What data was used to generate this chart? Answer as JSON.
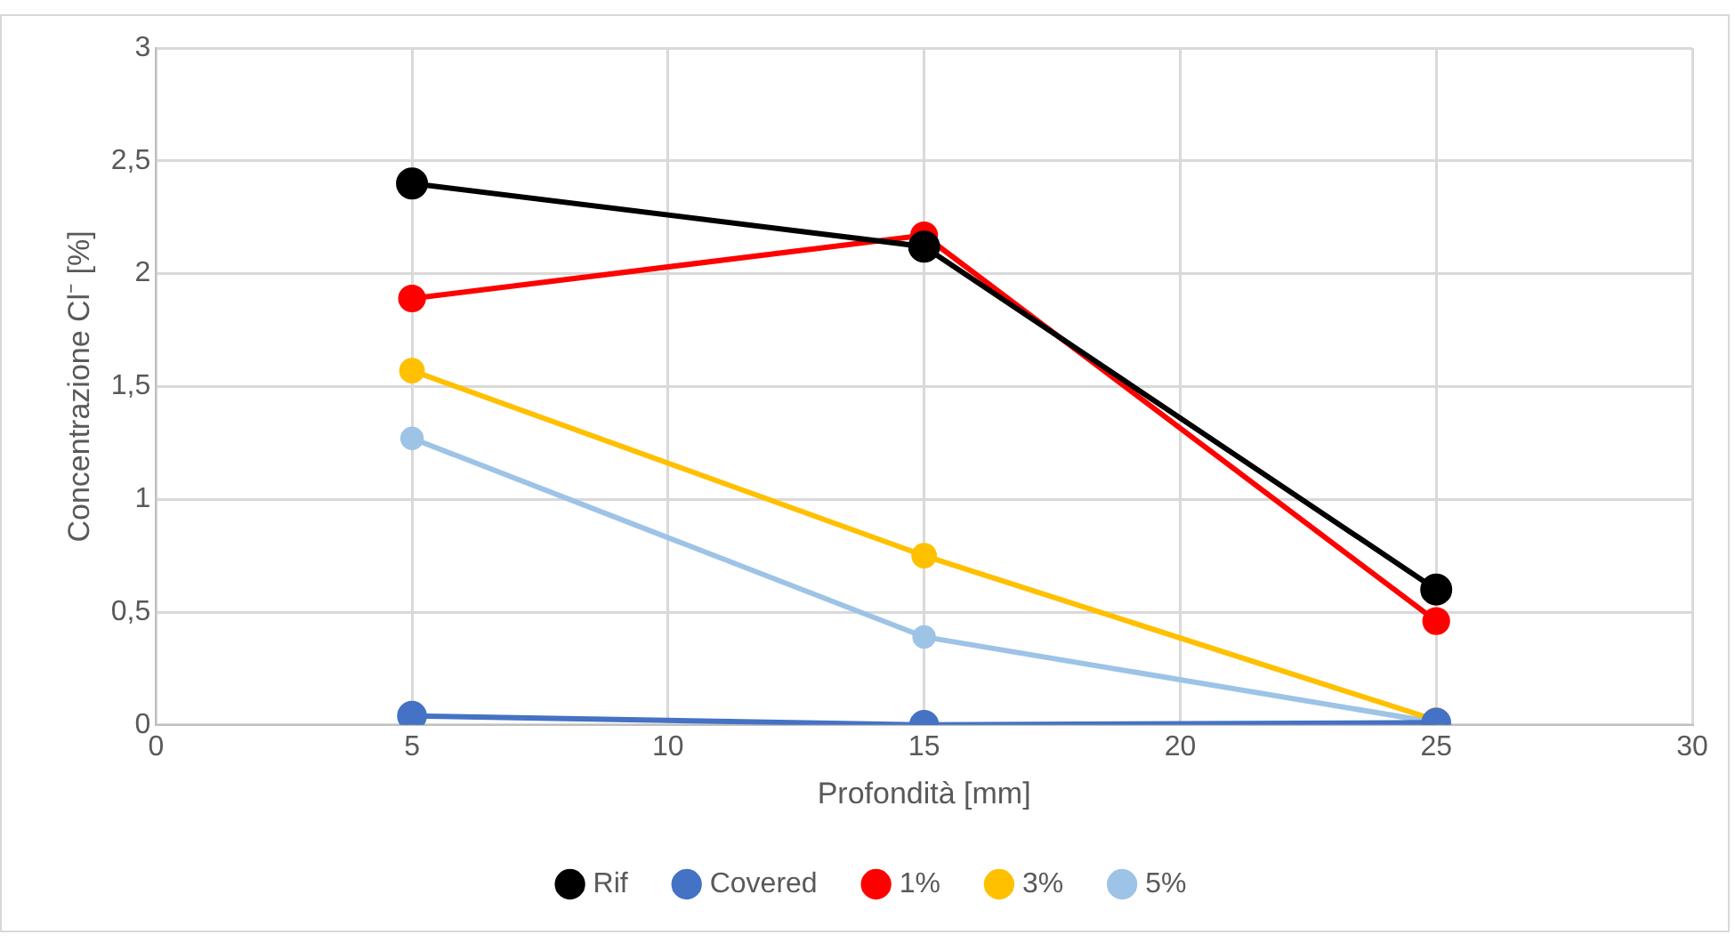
{
  "chart_data": {
    "type": "line",
    "xlabel": "Profondità [mm]",
    "ylabel": "Concentrazione Cl⁻ [%]",
    "x": [
      5,
      15,
      25
    ],
    "series": [
      {
        "name": "Rif",
        "color": "#000000",
        "values": [
          2.4,
          2.12,
          0.6
        ]
      },
      {
        "name": "Covered",
        "color": "#4472c4",
        "values": [
          0.04,
          0,
          0.01
        ]
      },
      {
        "name": "1%",
        "color": "#ff0000",
        "values": [
          1.89,
          2.17,
          0.46
        ]
      },
      {
        "name": "3%",
        "color": "#ffc000",
        "values": [
          1.57,
          0.75,
          0.02
        ]
      },
      {
        "name": "5%",
        "color": "#9dc3e6",
        "values": [
          1.27,
          0.39,
          0.01
        ]
      }
    ],
    "xlim": [
      0,
      30
    ],
    "xticks": [
      0,
      5,
      10,
      15,
      20,
      25,
      30
    ],
    "ylim": [
      0,
      3
    ],
    "yticks": [
      0,
      {
        "value": 0.5,
        "label": "0,5"
      },
      1,
      {
        "value": 1.5,
        "label": "1,5"
      },
      2,
      {
        "value": 2.5,
        "label": "2,5"
      },
      3
    ],
    "grid": true,
    "legend": "bottom",
    "marker": "circle",
    "line_style": "solid"
  }
}
